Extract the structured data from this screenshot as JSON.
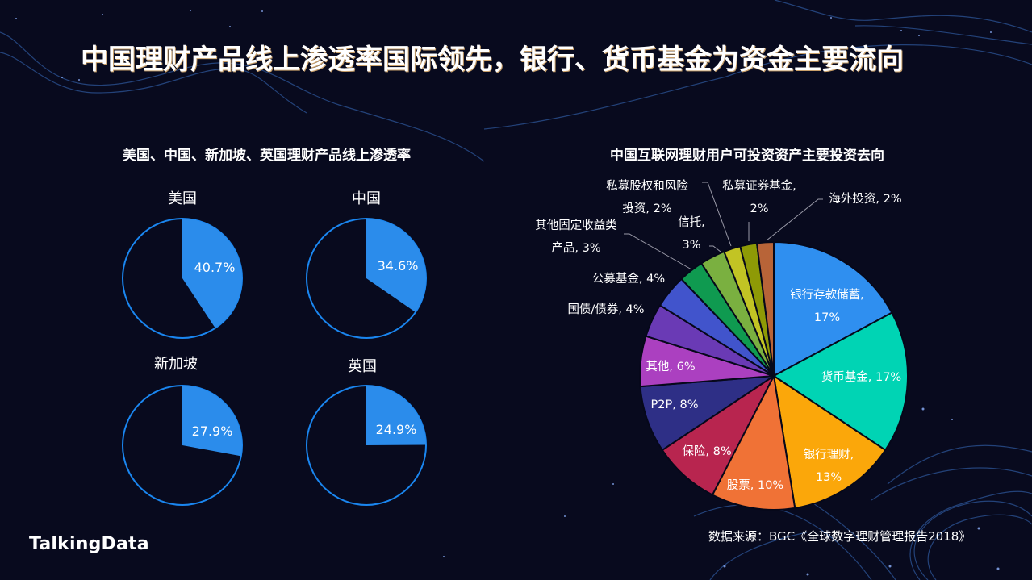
{
  "title": "中国理财产品线上渗透率国际领先，银行、货币基金为资金主要流向",
  "left_panel": {
    "subtitle": "美国、中国、新加坡、英国理财产品线上渗透率",
    "countries": [
      {
        "name": "美国",
        "value": 40.7,
        "label": "40.7%"
      },
      {
        "name": "中国",
        "value": 34.6,
        "label": "34.6%"
      },
      {
        "name": "新加坡",
        "value": 27.9,
        "label": "27.9%"
      },
      {
        "name": "英国",
        "value": 24.9,
        "label": "24.9%"
      }
    ],
    "fill_color": "#2b8ceb",
    "outline_color": "#1a86f0"
  },
  "right_panel": {
    "subtitle": "中国互联网理财用户可投资资产主要投资去向",
    "slices": [
      {
        "name": "银行存款储蓄",
        "value": 17,
        "label_l1": "银行存款储蓄,",
        "label_l2": "17%",
        "color": "#2f8ff0"
      },
      {
        "name": "货币基金",
        "value": 17,
        "label_l1": "货币基金, 17%",
        "label_l2": "",
        "color": "#00d4b4"
      },
      {
        "name": "银行理财",
        "value": 13,
        "label_l1": "银行理财,",
        "label_l2": "13%",
        "color": "#fba70a"
      },
      {
        "name": "股票",
        "value": 10,
        "label_l1": "股票, 10%",
        "label_l2": "",
        "color": "#f07236"
      },
      {
        "name": "保险",
        "value": 8,
        "label_l1": "保险, 8%",
        "label_l2": "",
        "color": "#b8254f"
      },
      {
        "name": "P2P",
        "value": 8,
        "label_l1": "P2P, 8%",
        "label_l2": "",
        "color": "#2e2f86"
      },
      {
        "name": "其他",
        "value": 6,
        "label_l1": "其他, 6%",
        "label_l2": "",
        "color": "#ab40c0"
      },
      {
        "name": "国债/债券",
        "value": 4,
        "label_l1": "国债/债券, 4%",
        "label_l2": "",
        "color": "#6a3ab5"
      },
      {
        "name": "公募基金",
        "value": 4,
        "label_l1": "公募基金, 4%",
        "label_l2": "",
        "color": "#4154cc"
      },
      {
        "name": "其他固定收益类产品",
        "value": 3,
        "label_l1": "其他固定收益类",
        "label_l2": "产品, 3%",
        "color": "#0f9a50"
      },
      {
        "name": "信托",
        "value": 3,
        "label_l1": "信托,",
        "label_l2": "3%",
        "color": "#7ab040"
      },
      {
        "name": "私募股权和风险投资",
        "value": 2,
        "label_l1": "私募股权和风险",
        "label_l2": "投资, 2%",
        "color": "#c2c424"
      },
      {
        "name": "私募证券基金",
        "value": 2,
        "label_l1": "私募证券基金,",
        "label_l2": "2%",
        "color": "#8e9a06"
      },
      {
        "name": "海外投资",
        "value": 2,
        "label_l1": "海外投资, 2%",
        "label_l2": "",
        "color": "#b86438"
      }
    ]
  },
  "footer": {
    "logo": "TalkingData",
    "source": "数据来源：BGC《全球数字理财管理报告2018》"
  },
  "chart_data": [
    {
      "type": "pie",
      "title": "美国、中国、新加坡、英国理财产品线上渗透率",
      "categories": [
        "美国",
        "中国",
        "新加坡",
        "英国"
      ],
      "values": [
        40.7,
        34.6,
        27.9,
        24.9
      ],
      "unit": "%",
      "note": "Four single-value pies showing online penetration share (highlighted slice) vs remainder"
    },
    {
      "type": "pie",
      "title": "中国互联网理财用户可投资资产主要投资去向",
      "categories": [
        "银行存款储蓄",
        "货币基金",
        "银行理财",
        "股票",
        "保险",
        "P2P",
        "其他",
        "国债/债券",
        "公募基金",
        "其他固定收益类产品",
        "信托",
        "私募股权和风险投资",
        "私募证券基金",
        "海外投资"
      ],
      "values": [
        17,
        17,
        13,
        10,
        8,
        8,
        6,
        4,
        4,
        3,
        3,
        2,
        2,
        2
      ],
      "unit": "%"
    }
  ]
}
